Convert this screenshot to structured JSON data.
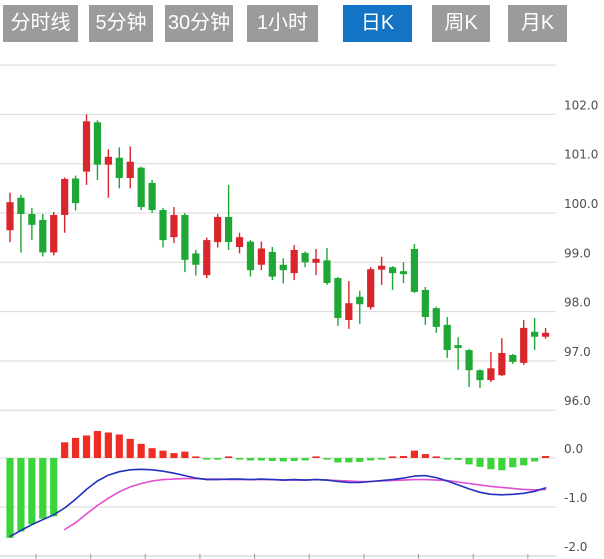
{
  "toolbar": {
    "tabs": [
      {
        "label": "分时线",
        "active": false
      },
      {
        "label": "5分钟",
        "active": false
      },
      {
        "label": "30分钟",
        "active": false
      },
      {
        "label": "1小时",
        "active": false
      },
      {
        "label": "日K",
        "active": true
      },
      {
        "label": "周K",
        "active": false
      },
      {
        "label": "月K",
        "active": false
      }
    ]
  },
  "colors": {
    "tab_inactive": "#9b9b9b",
    "tab_active": "#1373c4",
    "candle_up": "#d8262c",
    "candle_down": "#1ea734",
    "macd_up": "#ee2c24",
    "macd_down": "#3bd43b",
    "dif_line": "#2330c0",
    "dea_line": "#e14fd2",
    "gridline": "#d9d9d9",
    "axis_line": "#c9c9c9",
    "axis_text": "#4e4e4e"
  },
  "chart_data": {
    "type": "candlestick",
    "panels": [
      "price",
      "macd"
    ],
    "price_axis": {
      "tick_labels": [
        "102.0",
        "101.0",
        "100.0",
        "99.0",
        "98.0",
        "97.0",
        "96.0"
      ],
      "tick_values": [
        102,
        101,
        100,
        99,
        98,
        97,
        96
      ],
      "unlabeled_grid": [
        103
      ]
    },
    "macd_axis": {
      "tick_labels": [
        "0.0",
        "-1.0",
        "-2.0"
      ],
      "tick_values": [
        0,
        -1,
        -2
      ]
    },
    "legend": "none",
    "candles": [
      {
        "o": 99.65,
        "h": 100.41,
        "l": 99.41,
        "c": 100.22
      },
      {
        "o": 100.31,
        "h": 100.37,
        "l": 99.2,
        "c": 99.98
      },
      {
        "o": 99.98,
        "h": 100.1,
        "l": 99.45,
        "c": 99.76
      },
      {
        "o": 99.86,
        "h": 99.98,
        "l": 99.12,
        "c": 99.2
      },
      {
        "o": 99.2,
        "h": 100.02,
        "l": 99.14,
        "c": 99.96
      },
      {
        "o": 99.96,
        "h": 100.72,
        "l": 99.6,
        "c": 100.69
      },
      {
        "o": 100.7,
        "h": 100.76,
        "l": 100.05,
        "c": 100.2
      },
      {
        "o": 100.84,
        "h": 102.0,
        "l": 100.57,
        "c": 101.86
      },
      {
        "o": 101.84,
        "h": 101.88,
        "l": 100.67,
        "c": 100.98
      },
      {
        "o": 100.98,
        "h": 101.29,
        "l": 100.31,
        "c": 101.14
      },
      {
        "o": 101.12,
        "h": 101.33,
        "l": 100.5,
        "c": 100.71
      },
      {
        "o": 100.71,
        "h": 101.35,
        "l": 100.5,
        "c": 101.04
      },
      {
        "o": 100.92,
        "h": 100.94,
        "l": 100.06,
        "c": 100.12
      },
      {
        "o": 100.61,
        "h": 100.67,
        "l": 100.0,
        "c": 100.06
      },
      {
        "o": 100.06,
        "h": 100.1,
        "l": 99.3,
        "c": 99.45
      },
      {
        "o": 99.51,
        "h": 100.12,
        "l": 99.39,
        "c": 99.96
      },
      {
        "o": 99.96,
        "h": 100.0,
        "l": 98.8,
        "c": 99.05
      },
      {
        "o": 99.18,
        "h": 99.25,
        "l": 98.73,
        "c": 98.95
      },
      {
        "o": 98.74,
        "h": 99.5,
        "l": 98.68,
        "c": 99.45
      },
      {
        "o": 99.41,
        "h": 99.98,
        "l": 99.3,
        "c": 99.92
      },
      {
        "o": 99.92,
        "h": 100.57,
        "l": 99.25,
        "c": 99.41
      },
      {
        "o": 99.31,
        "h": 99.6,
        "l": 99.18,
        "c": 99.51
      },
      {
        "o": 99.42,
        "h": 99.45,
        "l": 98.71,
        "c": 98.84
      },
      {
        "o": 98.95,
        "h": 99.42,
        "l": 98.84,
        "c": 99.28
      },
      {
        "o": 99.21,
        "h": 99.31,
        "l": 98.64,
        "c": 98.71
      },
      {
        "o": 98.95,
        "h": 99.08,
        "l": 98.57,
        "c": 98.84
      },
      {
        "o": 98.78,
        "h": 99.35,
        "l": 98.64,
        "c": 99.25
      },
      {
        "o": 99.19,
        "h": 99.22,
        "l": 98.9,
        "c": 99.0
      },
      {
        "o": 98.99,
        "h": 99.27,
        "l": 98.74,
        "c": 99.07
      },
      {
        "o": 99.04,
        "h": 99.29,
        "l": 98.54,
        "c": 98.58
      },
      {
        "o": 98.68,
        "h": 98.7,
        "l": 97.71,
        "c": 97.87
      },
      {
        "o": 97.83,
        "h": 98.62,
        "l": 97.65,
        "c": 98.17
      },
      {
        "o": 98.3,
        "h": 98.42,
        "l": 97.75,
        "c": 98.15
      },
      {
        "o": 98.09,
        "h": 98.9,
        "l": 98.04,
        "c": 98.86
      },
      {
        "o": 98.85,
        "h": 99.11,
        "l": 98.54,
        "c": 98.93
      },
      {
        "o": 98.9,
        "h": 98.92,
        "l": 98.44,
        "c": 98.78
      },
      {
        "o": 98.82,
        "h": 99.0,
        "l": 98.58,
        "c": 98.76
      },
      {
        "o": 99.27,
        "h": 99.37,
        "l": 98.38,
        "c": 98.4
      },
      {
        "o": 98.44,
        "h": 98.5,
        "l": 97.73,
        "c": 97.89
      },
      {
        "o": 98.07,
        "h": 98.1,
        "l": 97.57,
        "c": 97.69
      },
      {
        "o": 97.73,
        "h": 97.89,
        "l": 97.06,
        "c": 97.22
      },
      {
        "o": 97.32,
        "h": 97.48,
        "l": 96.82,
        "c": 97.26
      },
      {
        "o": 97.22,
        "h": 97.24,
        "l": 96.47,
        "c": 96.81
      },
      {
        "o": 96.81,
        "h": 96.83,
        "l": 96.45,
        "c": 96.61
      },
      {
        "o": 96.61,
        "h": 97.18,
        "l": 96.57,
        "c": 96.85
      },
      {
        "o": 96.71,
        "h": 97.46,
        "l": 96.69,
        "c": 97.16
      },
      {
        "o": 97.12,
        "h": 97.14,
        "l": 96.94,
        "c": 96.98
      },
      {
        "o": 96.96,
        "h": 97.83,
        "l": 96.92,
        "c": 97.67
      },
      {
        "o": 97.59,
        "h": 97.87,
        "l": 97.22,
        "c": 97.49
      },
      {
        "o": 97.49,
        "h": 97.67,
        "l": 97.45,
        "c": 97.57
      }
    ],
    "macd": {
      "histogram": [
        -1.63,
        -1.5,
        -1.35,
        -1.24,
        -1.19,
        0.32,
        0.41,
        0.46,
        0.55,
        0.52,
        0.48,
        0.39,
        0.29,
        0.2,
        0.15,
        0.1,
        0.13,
        0.03,
        -0.03,
        -0.03,
        0.02,
        -0.01,
        -0.05,
        -0.05,
        -0.06,
        -0.07,
        -0.06,
        -0.05,
        0.02,
        -0.01,
        -0.09,
        -0.09,
        -0.08,
        -0.05,
        -0.01,
        0.03,
        0.04,
        0.15,
        0.08,
        0.02,
        -0.02,
        -0.04,
        -0.13,
        -0.18,
        -0.23,
        -0.25,
        -0.19,
        -0.15,
        -0.07,
        0.04
      ],
      "dif": [
        -1.6,
        -1.48,
        -1.36,
        -1.26,
        -1.16,
        -1.02,
        -0.84,
        -0.64,
        -0.47,
        -0.35,
        -0.28,
        -0.24,
        -0.23,
        -0.24,
        -0.27,
        -0.31,
        -0.36,
        -0.41,
        -0.44,
        -0.44,
        -0.43,
        -0.43,
        -0.44,
        -0.43,
        -0.44,
        -0.45,
        -0.44,
        -0.45,
        -0.44,
        -0.45,
        -0.48,
        -0.5,
        -0.5,
        -0.48,
        -0.46,
        -0.44,
        -0.41,
        -0.37,
        -0.36,
        -0.4,
        -0.47,
        -0.55,
        -0.63,
        -0.7,
        -0.74,
        -0.75,
        -0.74,
        -0.72,
        -0.68,
        -0.61
      ],
      "dea": [
        null,
        null,
        null,
        null,
        null,
        -1.46,
        -1.32,
        -1.14,
        -0.97,
        -0.82,
        -0.69,
        -0.59,
        -0.52,
        -0.47,
        -0.44,
        -0.43,
        -0.42,
        -0.42,
        -0.43,
        -0.43,
        -0.44,
        -0.44,
        -0.44,
        -0.44,
        -0.44,
        -0.45,
        -0.45,
        -0.45,
        -0.44,
        -0.45,
        -0.46,
        -0.47,
        -0.48,
        -0.48,
        -0.47,
        -0.46,
        -0.45,
        -0.44,
        -0.44,
        -0.45,
        -0.46,
        -0.49,
        -0.52,
        -0.55,
        -0.58,
        -0.6,
        -0.62,
        -0.64,
        -0.65,
        -0.64
      ]
    }
  }
}
